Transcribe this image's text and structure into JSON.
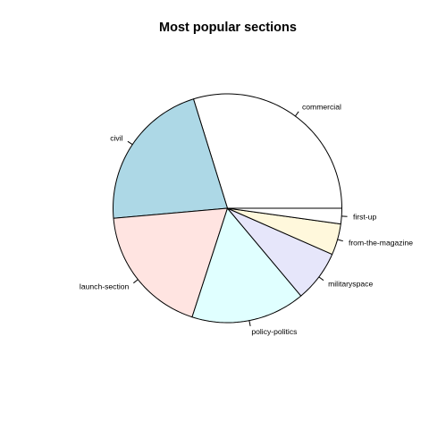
{
  "chart_data": {
    "type": "pie",
    "title": "Most popular sections",
    "slices": [
      {
        "label": "commercial",
        "value": 29.8,
        "color": "#ffffff"
      },
      {
        "label": "civil",
        "value": 21.6,
        "color": "#add8e6"
      },
      {
        "label": "launch-section",
        "value": 18.6,
        "color": "#ffe4e1"
      },
      {
        "label": "policy-politics",
        "value": 16.1,
        "color": "#e0ffff"
      },
      {
        "label": "militaryspace",
        "value": 7.3,
        "color": "#e6e6fa"
      },
      {
        "label": "from-the-magazine",
        "value": 4.4,
        "color": "#fff8dc"
      },
      {
        "label": "first-up",
        "value": 2.2,
        "color": "#ffffff"
      }
    ],
    "start_angle": "3 o'clock",
    "direction": "counter-clockwise",
    "legend": "none"
  }
}
